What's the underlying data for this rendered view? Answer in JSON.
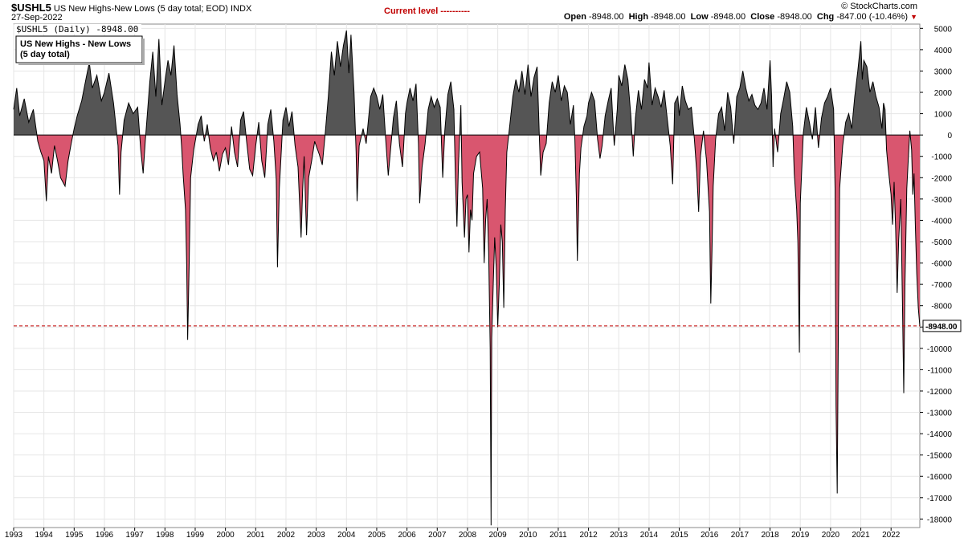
{
  "header": {
    "symbol": "$USHL5",
    "name": "US New Highs-New Lows (5 day total; EOD)",
    "exchange": "INDX",
    "date": "27-Sep-2022",
    "watermark": "© StockCharts.com",
    "annotation": "Current level ----------",
    "ohlc": {
      "open_label": "Open",
      "open": "-8948.00",
      "high_label": "High",
      "high": "-8948.00",
      "low_label": "Low",
      "low": "-8948.00",
      "close_label": "Close",
      "close": "-8948.00",
      "chg_label": "Chg",
      "chg": "-847.00 (-10.46%)"
    }
  },
  "colors": {
    "positive_fill": "#555555",
    "negative_fill": "#d9566f",
    "line": "#000000",
    "current_level_line": "#c00000",
    "grid": "#e6e6e6"
  },
  "chart_data": {
    "type": "area",
    "series_label": "$USHL5 (Daily) -8948.00",
    "legend_box": [
      "US New Highs - New Lows",
      "(5 day total)"
    ],
    "current_level": -8948,
    "current_level_label": "-8948.00",
    "ylim": [
      -18400,
      5200
    ],
    "y_ticks": [
      5000,
      4000,
      3000,
      2000,
      1000,
      0,
      -1000,
      -2000,
      -3000,
      -4000,
      -5000,
      -6000,
      -7000,
      -8000,
      -9000,
      -10000,
      -11000,
      -12000,
      -13000,
      -14000,
      -15000,
      -16000,
      -17000,
      -18000
    ],
    "x_ticks": [
      "1993",
      "1994",
      "1995",
      "1996",
      "1997",
      "1998",
      "1999",
      "2000",
      "2001",
      "2002",
      "2003",
      "2004",
      "2005",
      "2006",
      "2007",
      "2008",
      "2009",
      "2010",
      "2011",
      "2012",
      "2013",
      "2014",
      "2015",
      "2016",
      "2017",
      "2018",
      "2019",
      "2020",
      "2021",
      "2022"
    ],
    "xlim": [
      1993.0,
      2022.95
    ],
    "grid": true,
    "points": [
      [
        1993.0,
        1200
      ],
      [
        1993.1,
        2200
      ],
      [
        1993.2,
        900
      ],
      [
        1993.35,
        1700
      ],
      [
        1993.5,
        600
      ],
      [
        1993.65,
        1200
      ],
      [
        1993.8,
        -300
      ],
      [
        1993.9,
        -800
      ],
      [
        1994.0,
        -1200
      ],
      [
        1994.08,
        -3100
      ],
      [
        1994.15,
        -1000
      ],
      [
        1994.25,
        -1800
      ],
      [
        1994.35,
        -500
      ],
      [
        1994.45,
        -1200
      ],
      [
        1994.55,
        -2000
      ],
      [
        1994.7,
        -2400
      ],
      [
        1994.8,
        -1200
      ],
      [
        1994.9,
        -400
      ],
      [
        1995.0,
        300
      ],
      [
        1995.1,
        900
      ],
      [
        1995.25,
        1600
      ],
      [
        1995.4,
        2700
      ],
      [
        1995.5,
        3400
      ],
      [
        1995.6,
        2200
      ],
      [
        1995.75,
        2800
      ],
      [
        1995.9,
        1600
      ],
      [
        1996.0,
        2000
      ],
      [
        1996.15,
        2900
      ],
      [
        1996.3,
        1500
      ],
      [
        1996.45,
        -500
      ],
      [
        1996.5,
        -2800
      ],
      [
        1996.55,
        -800
      ],
      [
        1996.65,
        700
      ],
      [
        1996.8,
        1500
      ],
      [
        1996.95,
        1000
      ],
      [
        1997.1,
        1300
      ],
      [
        1997.2,
        -700
      ],
      [
        1997.28,
        -1800
      ],
      [
        1997.35,
        -300
      ],
      [
        1997.5,
        2500
      ],
      [
        1997.6,
        3900
      ],
      [
        1997.7,
        1800
      ],
      [
        1997.8,
        4500
      ],
      [
        1997.9,
        1400
      ],
      [
        1998.0,
        2500
      ],
      [
        1998.1,
        3500
      ],
      [
        1998.2,
        2800
      ],
      [
        1998.3,
        4200
      ],
      [
        1998.4,
        1900
      ],
      [
        1998.5,
        500
      ],
      [
        1998.55,
        -500
      ],
      [
        1998.6,
        -1800
      ],
      [
        1998.68,
        -3500
      ],
      [
        1998.72,
        -6100
      ],
      [
        1998.75,
        -9600
      ],
      [
        1998.8,
        -6200
      ],
      [
        1998.85,
        -2000
      ],
      [
        1998.95,
        -700
      ],
      [
        1999.1,
        500
      ],
      [
        1999.2,
        900
      ],
      [
        1999.3,
        -300
      ],
      [
        1999.4,
        500
      ],
      [
        1999.5,
        -600
      ],
      [
        1999.6,
        -1200
      ],
      [
        1999.7,
        -800
      ],
      [
        1999.8,
        -1700
      ],
      [
        1999.9,
        -900
      ],
      [
        2000.0,
        -600
      ],
      [
        2000.1,
        -1400
      ],
      [
        2000.2,
        400
      ],
      [
        2000.3,
        -800
      ],
      [
        2000.4,
        -1500
      ],
      [
        2000.5,
        700
      ],
      [
        2000.6,
        1100
      ],
      [
        2000.7,
        -300
      ],
      [
        2000.8,
        -1600
      ],
      [
        2000.9,
        -1900
      ],
      [
        2001.0,
        -500
      ],
      [
        2001.1,
        600
      ],
      [
        2001.2,
        -1200
      ],
      [
        2001.3,
        -2000
      ],
      [
        2001.4,
        500
      ],
      [
        2001.5,
        1200
      ],
      [
        2001.6,
        -300
      ],
      [
        2001.68,
        -2100
      ],
      [
        2001.72,
        -6200
      ],
      [
        2001.78,
        -2500
      ],
      [
        2001.9,
        700
      ],
      [
        2002.0,
        1300
      ],
      [
        2002.1,
        400
      ],
      [
        2002.2,
        1100
      ],
      [
        2002.3,
        -500
      ],
      [
        2002.4,
        -1500
      ],
      [
        2002.5,
        -4800
      ],
      [
        2002.55,
        -2600
      ],
      [
        2002.6,
        -1000
      ],
      [
        2002.68,
        -4700
      ],
      [
        2002.75,
        -2000
      ],
      [
        2002.85,
        -1200
      ],
      [
        2002.95,
        -300
      ],
      [
        2003.0,
        -500
      ],
      [
        2003.1,
        -900
      ],
      [
        2003.2,
        -1400
      ],
      [
        2003.3,
        100
      ],
      [
        2003.4,
        1800
      ],
      [
        2003.5,
        3900
      ],
      [
        2003.6,
        2800
      ],
      [
        2003.7,
        4400
      ],
      [
        2003.8,
        3200
      ],
      [
        2003.9,
        4200
      ],
      [
        2004.0,
        4900
      ],
      [
        2004.08,
        2900
      ],
      [
        2004.15,
        4700
      ],
      [
        2004.25,
        2000
      ],
      [
        2004.32,
        -800
      ],
      [
        2004.35,
        -3100
      ],
      [
        2004.42,
        -500
      ],
      [
        2004.55,
        300
      ],
      [
        2004.65,
        -400
      ],
      [
        2004.8,
        1800
      ],
      [
        2004.9,
        2200
      ],
      [
        2005.0,
        1800
      ],
      [
        2005.1,
        1200
      ],
      [
        2005.2,
        1900
      ],
      [
        2005.3,
        -300
      ],
      [
        2005.38,
        -1900
      ],
      [
        2005.45,
        -800
      ],
      [
        2005.55,
        800
      ],
      [
        2005.65,
        1600
      ],
      [
        2005.75,
        -400
      ],
      [
        2005.85,
        -1500
      ],
      [
        2005.95,
        1000
      ],
      [
        2006.0,
        1500
      ],
      [
        2006.1,
        2200
      ],
      [
        2006.2,
        1600
      ],
      [
        2006.3,
        2400
      ],
      [
        2006.38,
        -400
      ],
      [
        2006.42,
        -3200
      ],
      [
        2006.5,
        -1500
      ],
      [
        2006.6,
        -400
      ],
      [
        2006.7,
        1200
      ],
      [
        2006.8,
        1800
      ],
      [
        2006.9,
        1300
      ],
      [
        2007.0,
        1700
      ],
      [
        2007.1,
        1300
      ],
      [
        2007.18,
        -2000
      ],
      [
        2007.25,
        200
      ],
      [
        2007.35,
        1900
      ],
      [
        2007.45,
        2500
      ],
      [
        2007.55,
        1200
      ],
      [
        2007.6,
        -2000
      ],
      [
        2007.65,
        -4300
      ],
      [
        2007.7,
        -1500
      ],
      [
        2007.78,
        1400
      ],
      [
        2007.82,
        -2200
      ],
      [
        2007.9,
        -4800
      ],
      [
        2007.95,
        -3000
      ],
      [
        2008.0,
        -2800
      ],
      [
        2008.05,
        -5500
      ],
      [
        2008.1,
        -3500
      ],
      [
        2008.15,
        -4000
      ],
      [
        2008.2,
        -1800
      ],
      [
        2008.3,
        -1000
      ],
      [
        2008.4,
        -800
      ],
      [
        2008.5,
        -2500
      ],
      [
        2008.55,
        -6000
      ],
      [
        2008.6,
        -4000
      ],
      [
        2008.65,
        -3000
      ],
      [
        2008.7,
        -5500
      ],
      [
        2008.75,
        -10000
      ],
      [
        2008.78,
        -18300
      ],
      [
        2008.8,
        -9500
      ],
      [
        2008.85,
        -7000
      ],
      [
        2008.9,
        -4800
      ],
      [
        2008.95,
        -6200
      ],
      [
        2009.0,
        -9000
      ],
      [
        2009.05,
        -7000
      ],
      [
        2009.1,
        -4200
      ],
      [
        2009.15,
        -5000
      ],
      [
        2009.2,
        -8100
      ],
      [
        2009.25,
        -3500
      ],
      [
        2009.3,
        -800
      ],
      [
        2009.4,
        500
      ],
      [
        2009.5,
        1800
      ],
      [
        2009.6,
        2600
      ],
      [
        2009.7,
        2000
      ],
      [
        2009.8,
        3000
      ],
      [
        2009.9,
        1900
      ],
      [
        2010.0,
        3300
      ],
      [
        2010.1,
        1800
      ],
      [
        2010.2,
        2700
      ],
      [
        2010.3,
        3200
      ],
      [
        2010.38,
        -300
      ],
      [
        2010.42,
        -1900
      ],
      [
        2010.5,
        -800
      ],
      [
        2010.6,
        -400
      ],
      [
        2010.7,
        1500
      ],
      [
        2010.8,
        2500
      ],
      [
        2010.9,
        2000
      ],
      [
        2011.0,
        2800
      ],
      [
        2011.1,
        1600
      ],
      [
        2011.2,
        2300
      ],
      [
        2011.3,
        2000
      ],
      [
        2011.4,
        500
      ],
      [
        2011.5,
        1400
      ],
      [
        2011.55,
        -200
      ],
      [
        2011.6,
        -3000
      ],
      [
        2011.63,
        -5900
      ],
      [
        2011.7,
        -1800
      ],
      [
        2011.75,
        -600
      ],
      [
        2011.85,
        400
      ],
      [
        2011.95,
        900
      ],
      [
        2012.0,
        1500
      ],
      [
        2012.1,
        2000
      ],
      [
        2012.2,
        1600
      ],
      [
        2012.3,
        -200
      ],
      [
        2012.38,
        -1100
      ],
      [
        2012.45,
        -500
      ],
      [
        2012.55,
        900
      ],
      [
        2012.65,
        1600
      ],
      [
        2012.75,
        2200
      ],
      [
        2012.85,
        -500
      ],
      [
        2012.95,
        1200
      ],
      [
        2013.0,
        2800
      ],
      [
        2013.1,
        2300
      ],
      [
        2013.2,
        3300
      ],
      [
        2013.3,
        2600
      ],
      [
        2013.4,
        900
      ],
      [
        2013.48,
        -1000
      ],
      [
        2013.55,
        800
      ],
      [
        2013.65,
        2100
      ],
      [
        2013.75,
        1200
      ],
      [
        2013.85,
        2600
      ],
      [
        2013.95,
        2200
      ],
      [
        2014.0,
        3400
      ],
      [
        2014.1,
        1400
      ],
      [
        2014.2,
        2200
      ],
      [
        2014.3,
        1800
      ],
      [
        2014.4,
        1300
      ],
      [
        2014.5,
        2100
      ],
      [
        2014.6,
        800
      ],
      [
        2014.7,
        -500
      ],
      [
        2014.78,
        -2300
      ],
      [
        2014.85,
        1500
      ],
      [
        2014.95,
        1800
      ],
      [
        2015.0,
        900
      ],
      [
        2015.1,
        2300
      ],
      [
        2015.2,
        1600
      ],
      [
        2015.3,
        1200
      ],
      [
        2015.4,
        1300
      ],
      [
        2015.5,
        -200
      ],
      [
        2015.58,
        -1800
      ],
      [
        2015.64,
        -3600
      ],
      [
        2015.7,
        -1000
      ],
      [
        2015.8,
        200
      ],
      [
        2015.9,
        -1200
      ],
      [
        2016.0,
        -3600
      ],
      [
        2016.04,
        -7900
      ],
      [
        2016.08,
        -5400
      ],
      [
        2016.12,
        -2400
      ],
      [
        2016.2,
        -200
      ],
      [
        2016.3,
        1000
      ],
      [
        2016.4,
        1300
      ],
      [
        2016.5,
        200
      ],
      [
        2016.6,
        2000
      ],
      [
        2016.7,
        1300
      ],
      [
        2016.8,
        -400
      ],
      [
        2016.9,
        1800
      ],
      [
        2017.0,
        2200
      ],
      [
        2017.1,
        3000
      ],
      [
        2017.2,
        2200
      ],
      [
        2017.3,
        1600
      ],
      [
        2017.4,
        1900
      ],
      [
        2017.5,
        1400
      ],
      [
        2017.6,
        1200
      ],
      [
        2017.7,
        1500
      ],
      [
        2017.8,
        2200
      ],
      [
        2017.9,
        1200
      ],
      [
        2018.0,
        3500
      ],
      [
        2018.05,
        1800
      ],
      [
        2018.1,
        -1500
      ],
      [
        2018.15,
        300
      ],
      [
        2018.25,
        -800
      ],
      [
        2018.35,
        1000
      ],
      [
        2018.45,
        1700
      ],
      [
        2018.55,
        2500
      ],
      [
        2018.65,
        2000
      ],
      [
        2018.75,
        400
      ],
      [
        2018.8,
        -1800
      ],
      [
        2018.88,
        -3500
      ],
      [
        2018.92,
        -5000
      ],
      [
        2018.97,
        -10200
      ],
      [
        2019.0,
        -3200
      ],
      [
        2019.1,
        100
      ],
      [
        2019.2,
        1300
      ],
      [
        2019.3,
        600
      ],
      [
        2019.4,
        -200
      ],
      [
        2019.5,
        1300
      ],
      [
        2019.6,
        -600
      ],
      [
        2019.7,
        800
      ],
      [
        2019.8,
        1500
      ],
      [
        2019.9,
        1800
      ],
      [
        2020.0,
        2200
      ],
      [
        2020.1,
        1200
      ],
      [
        2020.15,
        -2500
      ],
      [
        2020.18,
        -12700
      ],
      [
        2020.22,
        -16800
      ],
      [
        2020.26,
        -8500
      ],
      [
        2020.3,
        -2500
      ],
      [
        2020.4,
        -500
      ],
      [
        2020.5,
        600
      ],
      [
        2020.6,
        1000
      ],
      [
        2020.7,
        300
      ],
      [
        2020.8,
        1800
      ],
      [
        2020.9,
        3000
      ],
      [
        2021.0,
        4400
      ],
      [
        2021.05,
        2600
      ],
      [
        2021.1,
        3500
      ],
      [
        2021.2,
        3200
      ],
      [
        2021.3,
        2000
      ],
      [
        2021.4,
        2500
      ],
      [
        2021.5,
        1800
      ],
      [
        2021.6,
        1300
      ],
      [
        2021.7,
        300
      ],
      [
        2021.75,
        1500
      ],
      [
        2021.8,
        1200
      ],
      [
        2021.85,
        -700
      ],
      [
        2021.9,
        -1500
      ],
      [
        2022.0,
        -2800
      ],
      [
        2022.05,
        -4200
      ],
      [
        2022.1,
        -2200
      ],
      [
        2022.15,
        -4400
      ],
      [
        2022.2,
        -7400
      ],
      [
        2022.25,
        -5000
      ],
      [
        2022.32,
        -3000
      ],
      [
        2022.38,
        -8200
      ],
      [
        2022.42,
        -12100
      ],
      [
        2022.46,
        -7000
      ],
      [
        2022.52,
        -2500
      ],
      [
        2022.58,
        -800
      ],
      [
        2022.62,
        200
      ],
      [
        2022.68,
        -700
      ],
      [
        2022.72,
        -2800
      ],
      [
        2022.76,
        -1800
      ],
      [
        2022.8,
        -4200
      ],
      [
        2022.85,
        -6500
      ],
      [
        2022.9,
        -8101
      ],
      [
        2022.95,
        -8948
      ]
    ]
  }
}
